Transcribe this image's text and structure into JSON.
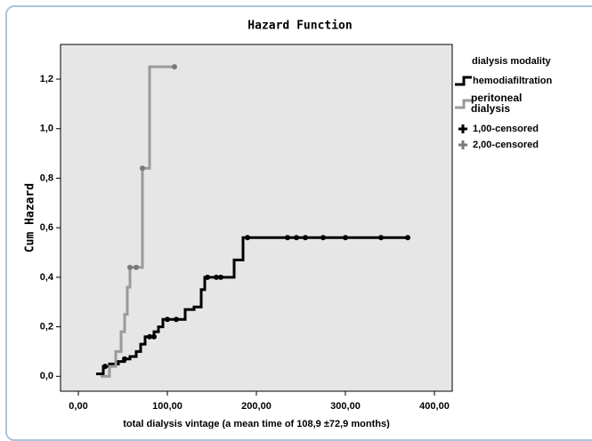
{
  "chart_data": {
    "type": "line",
    "step": true,
    "title": "Hazard Function",
    "x_label": "total dialysis vintage (a mean time of 108,9 ±72,9 months)",
    "y_label": "Cum Hazard",
    "legend_title": "dialysis modality",
    "xlim": [
      -20,
      420
    ],
    "ylim": [
      -0.06,
      1.34
    ],
    "xticks": [
      {
        "value": 0,
        "label": "0,00"
      },
      {
        "value": 100,
        "label": "100,00"
      },
      {
        "value": 200,
        "label": "200,00"
      },
      {
        "value": 300,
        "label": "300,00"
      },
      {
        "value": 400,
        "label": "400,00"
      }
    ],
    "yticks": [
      {
        "value": 0,
        "label": "0,0"
      },
      {
        "value": 0.2,
        "label": "0,2"
      },
      {
        "value": 0.4,
        "label": "0,4"
      },
      {
        "value": 0.6,
        "label": "0,6"
      },
      {
        "value": 0.8,
        "label": "0,8"
      },
      {
        "value": 1.0,
        "label": "1,0"
      },
      {
        "value": 1.2,
        "label": "1,2"
      }
    ],
    "series": [
      {
        "name": "hemodiafiltration",
        "color": "#000000",
        "kind": "step",
        "x": [
          20,
          28,
          35,
          45,
          52,
          58,
          65,
          70,
          75,
          85,
          90,
          95,
          120,
          130,
          138,
          142,
          175,
          185,
          370
        ],
        "values": [
          0.01,
          0.04,
          0.05,
          0.06,
          0.07,
          0.08,
          0.1,
          0.13,
          0.16,
          0.18,
          0.2,
          0.23,
          0.27,
          0.28,
          0.35,
          0.4,
          0.47,
          0.56,
          0.56
        ]
      },
      {
        "name": "peritoneal dialysis",
        "color": "#9a9a9a",
        "kind": "step",
        "x": [
          25,
          35,
          42,
          48,
          52,
          55,
          58,
          72,
          80,
          108
        ],
        "values": [
          0.0,
          0.04,
          0.1,
          0.18,
          0.25,
          0.36,
          0.44,
          0.84,
          1.25,
          1.25
        ]
      },
      {
        "name": "1,00-censored",
        "color": "#000000",
        "kind": "censored",
        "x": [
          30,
          52,
          80,
          85,
          100,
          110,
          145,
          155,
          160,
          190,
          235,
          245,
          255,
          275,
          300,
          340,
          370
        ],
        "values": [
          0.04,
          0.07,
          0.16,
          0.16,
          0.23,
          0.23,
          0.4,
          0.4,
          0.4,
          0.56,
          0.56,
          0.56,
          0.56,
          0.56,
          0.56,
          0.56,
          0.56
        ]
      },
      {
        "name": "2,00-censored",
        "color": "#7a7a7a",
        "kind": "censored",
        "x": [
          58,
          65,
          72,
          108
        ],
        "values": [
          0.44,
          0.44,
          0.84,
          1.25
        ]
      }
    ]
  }
}
